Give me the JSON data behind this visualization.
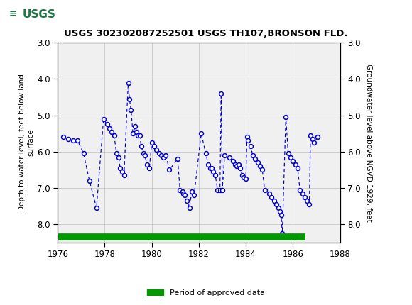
{
  "title": "USGS 302302087252501 USGS TH107,BRONSON FLD.",
  "ylabel_left": "Depth to water level, feet below land\nsurface",
  "ylabel_right": "Groundwater level above NGVD 1929, feet",
  "ylim": [
    3.0,
    8.5
  ],
  "yticks_left": [
    3.0,
    4.0,
    5.0,
    6.0,
    7.0,
    8.0
  ],
  "yticks_right": [
    8.0,
    7.0,
    6.0,
    5.0,
    4.0,
    3.0
  ],
  "ytick_labels_right": [
    "8.0",
    "7.0",
    "6.0",
    "5.0",
    "4.0",
    "3.0"
  ],
  "xlim": [
    1976,
    1988
  ],
  "xticks": [
    1976,
    1978,
    1980,
    1982,
    1984,
    1986,
    1988
  ],
  "header_color": "#1e7a45",
  "data_color": "#0000cc",
  "approved_color": "#009900",
  "legend_label": "Period of approved data",
  "background_color": "#ffffff",
  "plot_bg_color": "#f0f0f0",
  "approved_xstart": 1976.0,
  "approved_xend": 1986.55,
  "data_points": [
    [
      1976.25,
      5.6
    ],
    [
      1976.45,
      5.65
    ],
    [
      1976.65,
      5.7
    ],
    [
      1976.85,
      5.7
    ],
    [
      1977.1,
      6.05
    ],
    [
      1977.35,
      6.8
    ],
    [
      1977.65,
      7.55
    ],
    [
      1977.95,
      5.1
    ],
    [
      1978.1,
      5.25
    ],
    [
      1978.2,
      5.35
    ],
    [
      1978.3,
      5.45
    ],
    [
      1978.4,
      5.55
    ],
    [
      1978.5,
      6.05
    ],
    [
      1978.6,
      6.15
    ],
    [
      1978.65,
      6.45
    ],
    [
      1978.75,
      6.55
    ],
    [
      1978.82,
      6.65
    ],
    [
      1979.0,
      4.1
    ],
    [
      1979.05,
      4.55
    ],
    [
      1979.12,
      4.85
    ],
    [
      1979.2,
      5.5
    ],
    [
      1979.3,
      5.3
    ],
    [
      1979.35,
      5.45
    ],
    [
      1979.4,
      5.55
    ],
    [
      1979.5,
      5.55
    ],
    [
      1979.55,
      5.85
    ],
    [
      1979.65,
      6.05
    ],
    [
      1979.7,
      6.1
    ],
    [
      1979.8,
      6.35
    ],
    [
      1979.9,
      6.45
    ],
    [
      1980.0,
      5.75
    ],
    [
      1980.1,
      5.85
    ],
    [
      1980.2,
      5.95
    ],
    [
      1980.3,
      6.05
    ],
    [
      1980.4,
      6.1
    ],
    [
      1980.5,
      6.15
    ],
    [
      1980.6,
      6.1
    ],
    [
      1980.75,
      6.5
    ],
    [
      1981.1,
      6.2
    ],
    [
      1981.2,
      7.05
    ],
    [
      1981.3,
      7.1
    ],
    [
      1981.35,
      7.15
    ],
    [
      1981.4,
      7.2
    ],
    [
      1981.5,
      7.35
    ],
    [
      1981.6,
      7.55
    ],
    [
      1981.7,
      7.1
    ],
    [
      1981.8,
      7.2
    ],
    [
      1982.1,
      5.5
    ],
    [
      1982.3,
      6.05
    ],
    [
      1982.4,
      6.35
    ],
    [
      1982.5,
      6.45
    ],
    [
      1982.55,
      6.45
    ],
    [
      1982.6,
      6.55
    ],
    [
      1982.7,
      6.65
    ],
    [
      1982.8,
      7.05
    ],
    [
      1982.9,
      7.05
    ],
    [
      1983.0,
      7.05
    ],
    [
      1982.95,
      4.4
    ],
    [
      1983.1,
      6.1
    ],
    [
      1983.3,
      6.15
    ],
    [
      1983.45,
      6.25
    ],
    [
      1983.55,
      6.35
    ],
    [
      1983.6,
      6.4
    ],
    [
      1983.7,
      6.35
    ],
    [
      1983.75,
      6.45
    ],
    [
      1983.85,
      6.65
    ],
    [
      1983.9,
      6.7
    ],
    [
      1984.0,
      6.75
    ],
    [
      1984.05,
      5.6
    ],
    [
      1984.1,
      5.7
    ],
    [
      1984.2,
      5.85
    ],
    [
      1984.3,
      6.1
    ],
    [
      1984.4,
      6.2
    ],
    [
      1984.5,
      6.3
    ],
    [
      1984.6,
      6.4
    ],
    [
      1984.7,
      6.5
    ],
    [
      1984.8,
      7.05
    ],
    [
      1985.0,
      7.15
    ],
    [
      1985.1,
      7.25
    ],
    [
      1985.2,
      7.35
    ],
    [
      1985.3,
      7.45
    ],
    [
      1985.4,
      7.55
    ],
    [
      1985.45,
      7.65
    ],
    [
      1985.5,
      7.75
    ],
    [
      1985.55,
      8.25
    ],
    [
      1985.7,
      5.05
    ],
    [
      1985.8,
      6.05
    ],
    [
      1985.9,
      6.15
    ],
    [
      1986.0,
      6.25
    ],
    [
      1986.1,
      6.35
    ],
    [
      1986.2,
      6.45
    ],
    [
      1986.3,
      7.05
    ],
    [
      1986.4,
      7.15
    ],
    [
      1986.5,
      7.25
    ],
    [
      1986.6,
      7.35
    ],
    [
      1986.7,
      7.45
    ],
    [
      1986.75,
      5.55
    ],
    [
      1986.85,
      5.65
    ],
    [
      1986.9,
      5.75
    ],
    [
      1987.05,
      5.6
    ]
  ]
}
